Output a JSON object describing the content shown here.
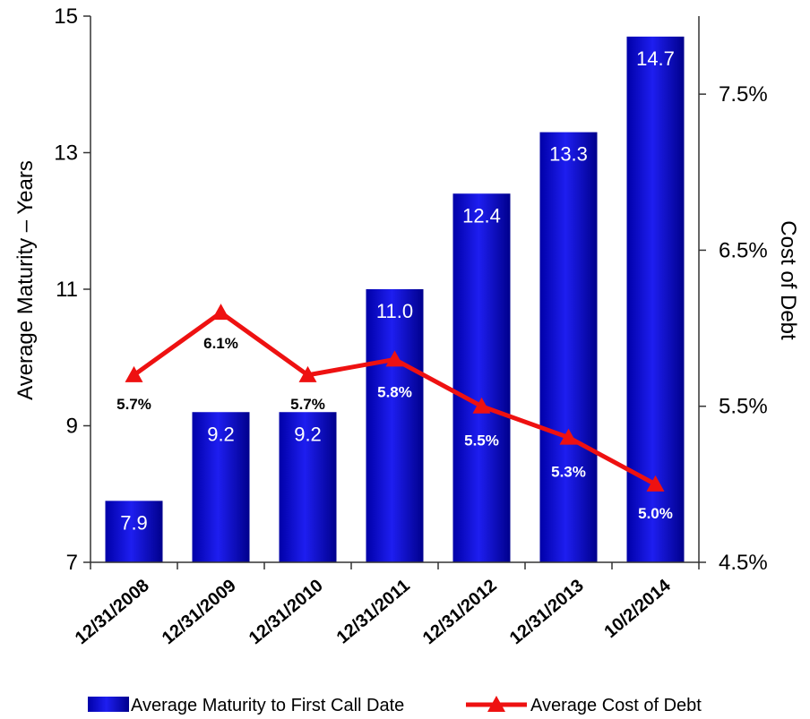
{
  "chart_data": {
    "type": "bar",
    "categories": [
      "12/31/2008",
      "12/31/2009",
      "12/31/2010",
      "12/31/2011",
      "12/31/2012",
      "12/31/2013",
      "10/2/2014"
    ],
    "series": [
      {
        "name": "Average Maturity to First Call Date",
        "type": "bar",
        "axis": "left",
        "values": [
          7.9,
          9.2,
          9.2,
          11.0,
          12.4,
          13.3,
          14.7
        ],
        "labels": [
          "7.9",
          "9.2",
          "9.2",
          "11.0",
          "12.4",
          "13.3",
          "14.7"
        ],
        "color": "#1010D0"
      },
      {
        "name": "Average Cost of Debt",
        "type": "line",
        "axis": "right",
        "values": [
          5.7,
          6.1,
          5.7,
          5.8,
          5.5,
          5.3,
          5.0
        ],
        "labels": [
          "5.7%",
          "6.1%",
          "5.7%",
          "5.8%",
          "5.5%",
          "5.3%",
          "5.0%"
        ],
        "color": "#EE1111"
      }
    ],
    "ylabel": "Average Maturity – Years",
    "ylabel_right": "Cost of Debt",
    "ylim": [
      7,
      15
    ],
    "yticks": [
      7,
      9,
      11,
      13,
      15
    ],
    "ytick_labels": [
      "7",
      "9",
      "11",
      "13",
      "15"
    ],
    "ylim_right": [
      4.5,
      8.0
    ],
    "yticks_right": [
      4.5,
      5.5,
      6.5,
      7.5
    ],
    "ytick_labels_right": [
      "4.5%",
      "5.5%",
      "6.5%",
      "7.5%"
    ],
    "grid": false,
    "legend_position": "bottom"
  }
}
